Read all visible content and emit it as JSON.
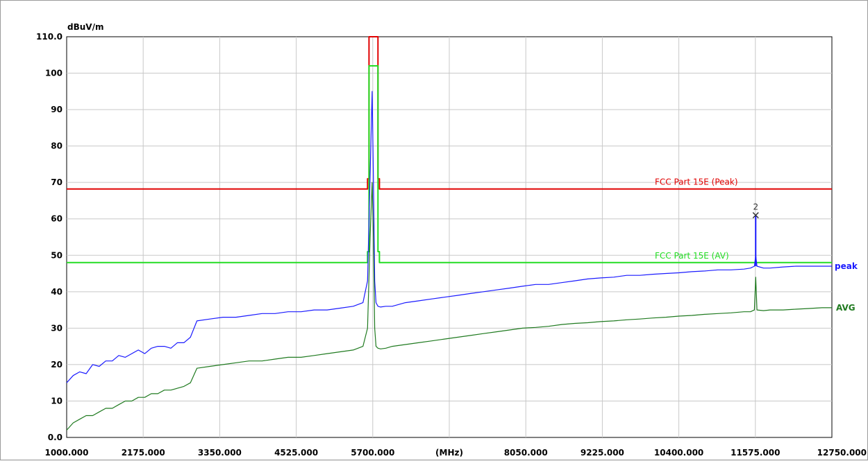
{
  "chart_data": {
    "type": "line",
    "y_unit": "dBuV/m",
    "x_unit": "(MHz)",
    "ylim": [
      0,
      110
    ],
    "xlim": [
      1000,
      12750
    ],
    "y_ticks": [
      "0.0",
      "10",
      "20",
      "30",
      "40",
      "50",
      "60",
      "70",
      "80",
      "90",
      "100",
      "110.0"
    ],
    "y_tick_values": [
      0,
      10,
      20,
      30,
      40,
      50,
      60,
      70,
      80,
      90,
      100,
      110
    ],
    "x_ticks": [
      "1000.000",
      "2175.000",
      "3350.000",
      "4525.000",
      "5700.000",
      "(MHz)",
      "8050.000",
      "9225.000",
      "10400.000",
      "11575.000",
      "12750.000"
    ],
    "x_tick_values": [
      1000,
      2175,
      3350,
      4525,
      5700,
      6875,
      8050,
      9225,
      10400,
      11575,
      12750
    ],
    "grid": true,
    "colors": {
      "peak": "#1a1aff",
      "avg": "#1f7a1f",
      "limit_peak": "#e00000",
      "limit_avg": "#22dd22",
      "marker": "#333333",
      "grid": "#c8c8c8"
    },
    "series": [
      {
        "name": "FCC Part 15E  (Peak)",
        "kind": "limit",
        "x": [
          1000,
          5620,
          5620,
          5642,
          5642,
          5780,
          5780,
          5802,
          5802,
          12750
        ],
        "y": [
          68.2,
          68.2,
          71,
          71,
          110,
          110,
          71,
          71,
          68.2,
          68.2
        ]
      },
      {
        "name": "FCC Part 15E  (AV)",
        "kind": "limit",
        "x": [
          1000,
          5620,
          5620,
          5642,
          5642,
          5780,
          5780,
          5802,
          5802,
          12750
        ],
        "y": [
          48,
          48,
          51,
          51,
          102,
          102,
          51,
          51,
          48,
          48
        ]
      },
      {
        "name": "peak",
        "kind": "trace",
        "x": [
          1000,
          1100,
          1200,
          1300,
          1400,
          1500,
          1600,
          1700,
          1800,
          1900,
          2000,
          2100,
          2200,
          2300,
          2400,
          2500,
          2600,
          2700,
          2800,
          2900,
          3000,
          3200,
          3400,
          3600,
          3800,
          4000,
          4200,
          4400,
          4600,
          4800,
          5000,
          5200,
          5400,
          5550,
          5620,
          5660,
          5690,
          5710,
          5730,
          5750,
          5780,
          5820,
          5900,
          6000,
          6200,
          6400,
          6600,
          6800,
          7000,
          7200,
          7400,
          7600,
          7800,
          8000,
          8200,
          8400,
          8600,
          8800,
          9000,
          9200,
          9400,
          9600,
          9800,
          10000,
          10200,
          10400,
          10600,
          10800,
          11000,
          11200,
          11400,
          11500,
          11560,
          11580,
          11600,
          11700,
          11800,
          12000,
          12200,
          12400,
          12600,
          12750
        ],
        "y": [
          15,
          17,
          18,
          17.5,
          20,
          19.5,
          21,
          21,
          22.5,
          22,
          23,
          24,
          23,
          24.5,
          25,
          25,
          24.5,
          26,
          26,
          27.5,
          32,
          32.5,
          33,
          33,
          33.5,
          34,
          34,
          34.5,
          34.5,
          35,
          35,
          35.5,
          36,
          37,
          43,
          72,
          95,
          72,
          43,
          37,
          36,
          35.8,
          36,
          36,
          37,
          37.5,
          38,
          38.5,
          39,
          39.5,
          40,
          40.5,
          41,
          41.5,
          42,
          42,
          42.5,
          43,
          43.5,
          43.8,
          44,
          44.5,
          44.5,
          44.8,
          45,
          45.2,
          45.5,
          45.7,
          46,
          46,
          46.2,
          46.5,
          47,
          50,
          47,
          46.5,
          46.5,
          46.8,
          47,
          47,
          47,
          47
        ]
      },
      {
        "name": "AVG",
        "kind": "trace",
        "x": [
          1000,
          1100,
          1200,
          1300,
          1400,
          1500,
          1600,
          1700,
          1800,
          1900,
          2000,
          2100,
          2200,
          2300,
          2400,
          2500,
          2600,
          2700,
          2800,
          2900,
          3000,
          3200,
          3400,
          3600,
          3800,
          4000,
          4200,
          4400,
          4600,
          4800,
          5000,
          5200,
          5400,
          5550,
          5620,
          5660,
          5690,
          5710,
          5730,
          5750,
          5780,
          5820,
          5900,
          6000,
          6200,
          6400,
          6600,
          6800,
          7000,
          7200,
          7400,
          7600,
          7800,
          8000,
          8200,
          8400,
          8600,
          8800,
          9000,
          9200,
          9400,
          9600,
          9800,
          10000,
          10200,
          10400,
          10600,
          10800,
          11000,
          11200,
          11400,
          11500,
          11560,
          11580,
          11600,
          11700,
          11800,
          12000,
          12200,
          12400,
          12600,
          12750
        ],
        "y": [
          2,
          4,
          5,
          6,
          6,
          7,
          8,
          8,
          9,
          10,
          10,
          11,
          11,
          12,
          12,
          13,
          13,
          13.5,
          14,
          15,
          19,
          19.5,
          20,
          20.5,
          21,
          21,
          21.5,
          22,
          22,
          22.5,
          23,
          23.5,
          24,
          25,
          30,
          55,
          70,
          55,
          30,
          25,
          24.5,
          24.3,
          24.5,
          25,
          25.5,
          26,
          26.5,
          27,
          27.5,
          28,
          28.5,
          29,
          29.5,
          30,
          30.2,
          30.5,
          31,
          31.3,
          31.5,
          31.8,
          32,
          32.3,
          32.5,
          32.8,
          33,
          33.3,
          33.5,
          33.8,
          34,
          34.2,
          34.5,
          34.5,
          35,
          44,
          35,
          34.8,
          35,
          35,
          35.2,
          35.4,
          35.6,
          35.6
        ]
      }
    ],
    "markers": [
      {
        "label": "2",
        "x": 11580,
        "y": 61,
        "y_low": 47
      }
    ]
  }
}
